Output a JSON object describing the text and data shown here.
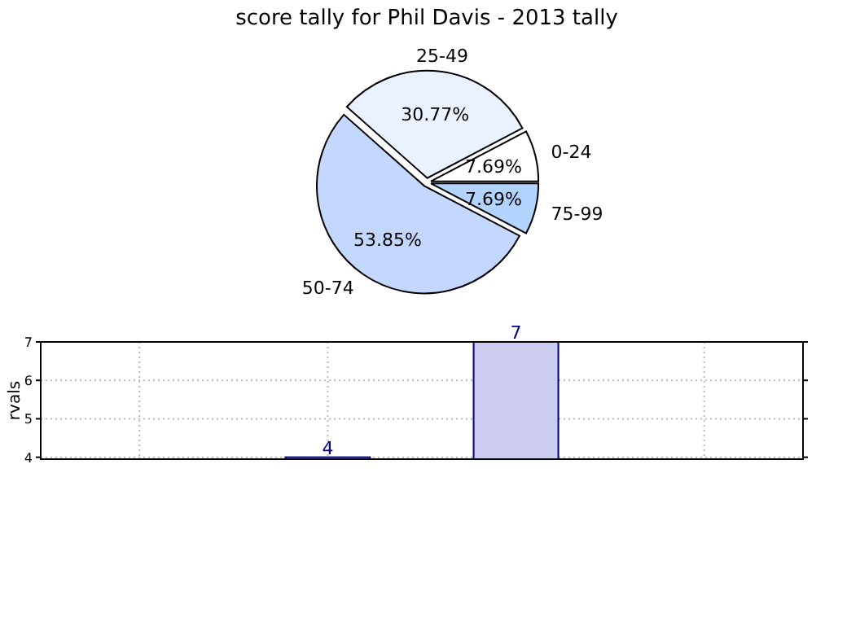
{
  "chart_data": [
    {
      "type": "pie",
      "title": "score tally for Phil Davis - 2013 tally",
      "categories": [
        "0-24",
        "25-49",
        "50-74",
        "75-99"
      ],
      "values": [
        7.69,
        30.77,
        53.85,
        7.69
      ],
      "colors": [
        "#ffffff",
        "#eaf1ff",
        "#c4d8ff",
        "#b3d4ff"
      ],
      "value_labels": [
        "7.69%",
        "30.77%",
        "53.85%",
        "7.69%"
      ]
    },
    {
      "type": "bar",
      "ylabel": "rvals",
      "categories": [
        null,
        null,
        null,
        null
      ],
      "values": [
        null,
        4,
        7,
        null
      ],
      "colors": [
        null,
        "#ccccee",
        "#ccccee",
        null
      ],
      "ylim": [
        3.95,
        7
      ],
      "yticks": [
        4,
        5,
        6,
        7
      ],
      "grid": true,
      "data_labels": true
    }
  ]
}
